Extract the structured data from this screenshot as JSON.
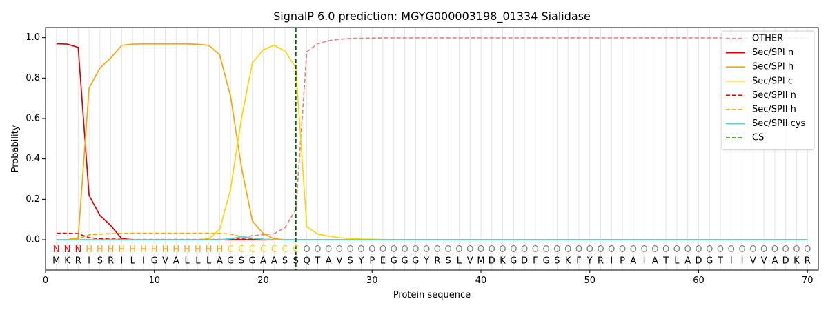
{
  "chart_data": {
    "type": "line",
    "title": "SignalP 6.0 prediction: MGYG000003198_01334 Sialidase",
    "xlabel": "Protein sequence",
    "ylabel": "Probability",
    "xlim": [
      0,
      71
    ],
    "ylim": [
      -0.15,
      1.05
    ],
    "xticks": [
      0,
      10,
      20,
      30,
      40,
      50,
      60,
      70
    ],
    "yticks": [
      "0.0",
      "0.2",
      "0.4",
      "0.6",
      "0.8",
      "1.0"
    ],
    "grid": "vertical lines at each residue position",
    "legend_position": "top-right",
    "sequence": [
      "M",
      "K",
      "R",
      "I",
      "S",
      "R",
      "I",
      "L",
      "I",
      "G",
      "V",
      "A",
      "L",
      "L",
      "L",
      "A",
      "G",
      "S",
      "G",
      "A",
      "A",
      "S",
      "S",
      "Q",
      "T",
      "A",
      "V",
      "S",
      "Y",
      "P",
      "E",
      "G",
      "G",
      "G",
      "Y",
      "R",
      "S",
      "L",
      "V",
      "M",
      "D",
      "K",
      "G",
      "D",
      "F",
      "G",
      "S",
      "K",
      "F",
      "Y",
      "R",
      "I",
      "P",
      "A",
      "I",
      "A",
      "T",
      "L",
      "A",
      "D",
      "G",
      "T",
      "I",
      "I",
      "V",
      "V",
      "A",
      "D",
      "K",
      "R"
    ],
    "labels": [
      "N",
      "N",
      "N",
      "H",
      "H",
      "H",
      "H",
      "H",
      "H",
      "H",
      "H",
      "H",
      "H",
      "H",
      "H",
      "H",
      "C",
      "C",
      "C",
      "C",
      "C",
      "C",
      "C",
      "O",
      "O",
      "O",
      "O",
      "O",
      "O",
      "O",
      "O",
      "O",
      "O",
      "O",
      "O",
      "O",
      "O",
      "O",
      "O",
      "O",
      "O",
      "O",
      "O",
      "O",
      "O",
      "O",
      "O",
      "O",
      "O",
      "O",
      "O",
      "O",
      "O",
      "O",
      "O",
      "O",
      "O",
      "O",
      "O",
      "O",
      "O",
      "O",
      "O",
      "O",
      "O",
      "O",
      "O",
      "O",
      "O",
      "O"
    ],
    "label_colors": {
      "N": "#ff0000",
      "H": "#ffa500",
      "C": "#ffd700",
      "O": "#808080"
    },
    "cleavage_site": 23,
    "series": [
      {
        "name": "OTHER",
        "color": "#f08080",
        "dash": "dashed",
        "values": [
          0.0,
          0.0,
          0.0,
          0.0,
          0.0,
          0.0,
          0.0,
          0.0,
          0.0,
          0.0,
          0.0,
          0.0,
          0.0,
          0.0,
          0.0,
          0.0,
          0.003,
          0.01,
          0.02,
          0.025,
          0.03,
          0.06,
          0.15,
          0.93,
          0.97,
          0.985,
          0.992,
          0.996,
          0.997,
          0.998,
          0.999,
          0.999,
          0.999,
          0.999,
          0.999,
          0.999,
          0.999,
          0.999,
          0.999,
          0.999,
          0.999,
          0.999,
          0.999,
          0.999,
          0.999,
          0.999,
          0.999,
          0.999,
          0.999,
          0.999,
          0.999,
          0.999,
          0.999,
          0.999,
          0.999,
          0.999,
          0.999,
          0.999,
          0.999,
          0.999,
          0.999,
          0.999,
          0.999,
          0.999,
          0.999,
          0.999,
          0.999,
          0.999,
          0.999,
          0.999
        ]
      },
      {
        "name": "Sec/SPI n",
        "color": "#e00000",
        "dash": "solid",
        "values": [
          0.97,
          0.968,
          0.952,
          0.22,
          0.12,
          0.07,
          0.005,
          0.0,
          0.0,
          0.0,
          0.0,
          0.0,
          0.0,
          0.0,
          0.0,
          0.0,
          0.0,
          0.0,
          0.0,
          0.0,
          0.0,
          0.0,
          0.0,
          0.0,
          0.0,
          0.0,
          0.0,
          0.0,
          0.0,
          0.0,
          0.0,
          0.0,
          0.0,
          0.0,
          0.0,
          0.0,
          0.0,
          0.0,
          0.0,
          0.0,
          0.0,
          0.0,
          0.0,
          0.0,
          0.0,
          0.0,
          0.0,
          0.0,
          0.0,
          0.0,
          0.0,
          0.0,
          0.0,
          0.0,
          0.0,
          0.0,
          0.0,
          0.0,
          0.0,
          0.0,
          0.0,
          0.0,
          0.0,
          0.0,
          0.0,
          0.0,
          0.0,
          0.0,
          0.0,
          0.0
        ]
      },
      {
        "name": "Sec/SPI h",
        "color": "#ffa500",
        "dash": "solid",
        "values": [
          0.0,
          0.0,
          0.01,
          0.75,
          0.85,
          0.9,
          0.962,
          0.968,
          0.969,
          0.969,
          0.969,
          0.969,
          0.969,
          0.967,
          0.962,
          0.915,
          0.71,
          0.36,
          0.093,
          0.03,
          0.005,
          0.0,
          0.0,
          0.0,
          0.0,
          0.0,
          0.0,
          0.0,
          0.0,
          0.0,
          0.0,
          0.0,
          0.0,
          0.0,
          0.0,
          0.0,
          0.0,
          0.0,
          0.0,
          0.0,
          0.0,
          0.0,
          0.0,
          0.0,
          0.0,
          0.0,
          0.0,
          0.0,
          0.0,
          0.0,
          0.0,
          0.0,
          0.0,
          0.0,
          0.0,
          0.0,
          0.0,
          0.0,
          0.0,
          0.0,
          0.0,
          0.0,
          0.0,
          0.0,
          0.0,
          0.0,
          0.0,
          0.0,
          0.0,
          0.0
        ]
      },
      {
        "name": "Sec/SPI c",
        "color": "#ffd700",
        "dash": "solid",
        "values": [
          0.0,
          0.0,
          0.0,
          0.0,
          0.0,
          0.0,
          0.0,
          0.0,
          0.0,
          0.0,
          0.0,
          0.0,
          0.0,
          0.0,
          0.005,
          0.05,
          0.25,
          0.6,
          0.875,
          0.94,
          0.962,
          0.935,
          0.85,
          0.065,
          0.028,
          0.018,
          0.01,
          0.006,
          0.003,
          0.002,
          0.001,
          0.0,
          0.0,
          0.0,
          0.0,
          0.0,
          0.0,
          0.0,
          0.0,
          0.0,
          0.0,
          0.0,
          0.0,
          0.0,
          0.0,
          0.0,
          0.0,
          0.0,
          0.0,
          0.0,
          0.0,
          0.0,
          0.0,
          0.0,
          0.0,
          0.0,
          0.0,
          0.0,
          0.0,
          0.0,
          0.0,
          0.0,
          0.0,
          0.0,
          0.0,
          0.0,
          0.0,
          0.0,
          0.0,
          0.0
        ]
      },
      {
        "name": "Sec/SPII n",
        "color": "#e00000",
        "dash": "dashed",
        "values": [
          0.032,
          0.032,
          0.03,
          0.01,
          0.005,
          0.003,
          0.002,
          0.001,
          0.001,
          0.001,
          0.001,
          0.001,
          0.001,
          0.001,
          0.001,
          0.001,
          0.001,
          0.003,
          0.002,
          0.001,
          0.0,
          0.0,
          0.0,
          0.0,
          0.0,
          0.0,
          0.0,
          0.0,
          0.0,
          0.0,
          0.0,
          0.0,
          0.0,
          0.0,
          0.0,
          0.0,
          0.0,
          0.0,
          0.0,
          0.0,
          0.0,
          0.0,
          0.0,
          0.0,
          0.0,
          0.0,
          0.0,
          0.0,
          0.0,
          0.0,
          0.0,
          0.0,
          0.0,
          0.0,
          0.0,
          0.0,
          0.0,
          0.0,
          0.0,
          0.0,
          0.0,
          0.0,
          0.0,
          0.0,
          0.0,
          0.0,
          0.0,
          0.0,
          0.0,
          0.0
        ]
      },
      {
        "name": "Sec/SPII h",
        "color": "#ffa500",
        "dash": "dashed",
        "values": [
          0.0,
          0.0,
          0.005,
          0.024,
          0.028,
          0.03,
          0.031,
          0.032,
          0.032,
          0.032,
          0.032,
          0.032,
          0.032,
          0.032,
          0.032,
          0.031,
          0.028,
          0.015,
          0.007,
          0.003,
          0.001,
          0.0,
          0.0,
          0.0,
          0.0,
          0.0,
          0.0,
          0.0,
          0.0,
          0.0,
          0.0,
          0.0,
          0.0,
          0.0,
          0.0,
          0.0,
          0.0,
          0.0,
          0.0,
          0.0,
          0.0,
          0.0,
          0.0,
          0.0,
          0.0,
          0.0,
          0.0,
          0.0,
          0.0,
          0.0,
          0.0,
          0.0,
          0.0,
          0.0,
          0.0,
          0.0,
          0.0,
          0.0,
          0.0,
          0.0,
          0.0,
          0.0,
          0.0,
          0.0,
          0.0,
          0.0,
          0.0,
          0.0,
          0.0,
          0.0
        ]
      },
      {
        "name": "Sec/SPII cys",
        "color": "#40e0e0",
        "dash": "solid",
        "values": [
          0.0,
          0.0,
          0.0,
          0.0,
          0.0,
          0.0,
          0.0,
          0.0,
          0.0,
          0.0,
          0.0,
          0.0,
          0.0,
          0.0,
          0.0,
          0.0,
          0.005,
          0.015,
          0.008,
          0.003,
          0.001,
          0.0,
          0.0,
          0.0,
          0.0,
          0.0,
          0.0,
          0.0,
          0.0,
          0.0,
          0.0,
          0.0,
          0.0,
          0.0,
          0.0,
          0.0,
          0.0,
          0.0,
          0.0,
          0.0,
          0.0,
          0.0,
          0.0,
          0.0,
          0.0,
          0.0,
          0.0,
          0.0,
          0.0,
          0.0,
          0.0,
          0.0,
          0.0,
          0.0,
          0.0,
          0.0,
          0.0,
          0.0,
          0.0,
          0.0,
          0.0,
          0.0,
          0.0,
          0.0,
          0.0,
          0.0,
          0.0,
          0.0,
          0.0,
          0.0
        ]
      }
    ],
    "cs_legend": {
      "name": "CS",
      "color": "#006400",
      "dash": "dashed"
    }
  }
}
